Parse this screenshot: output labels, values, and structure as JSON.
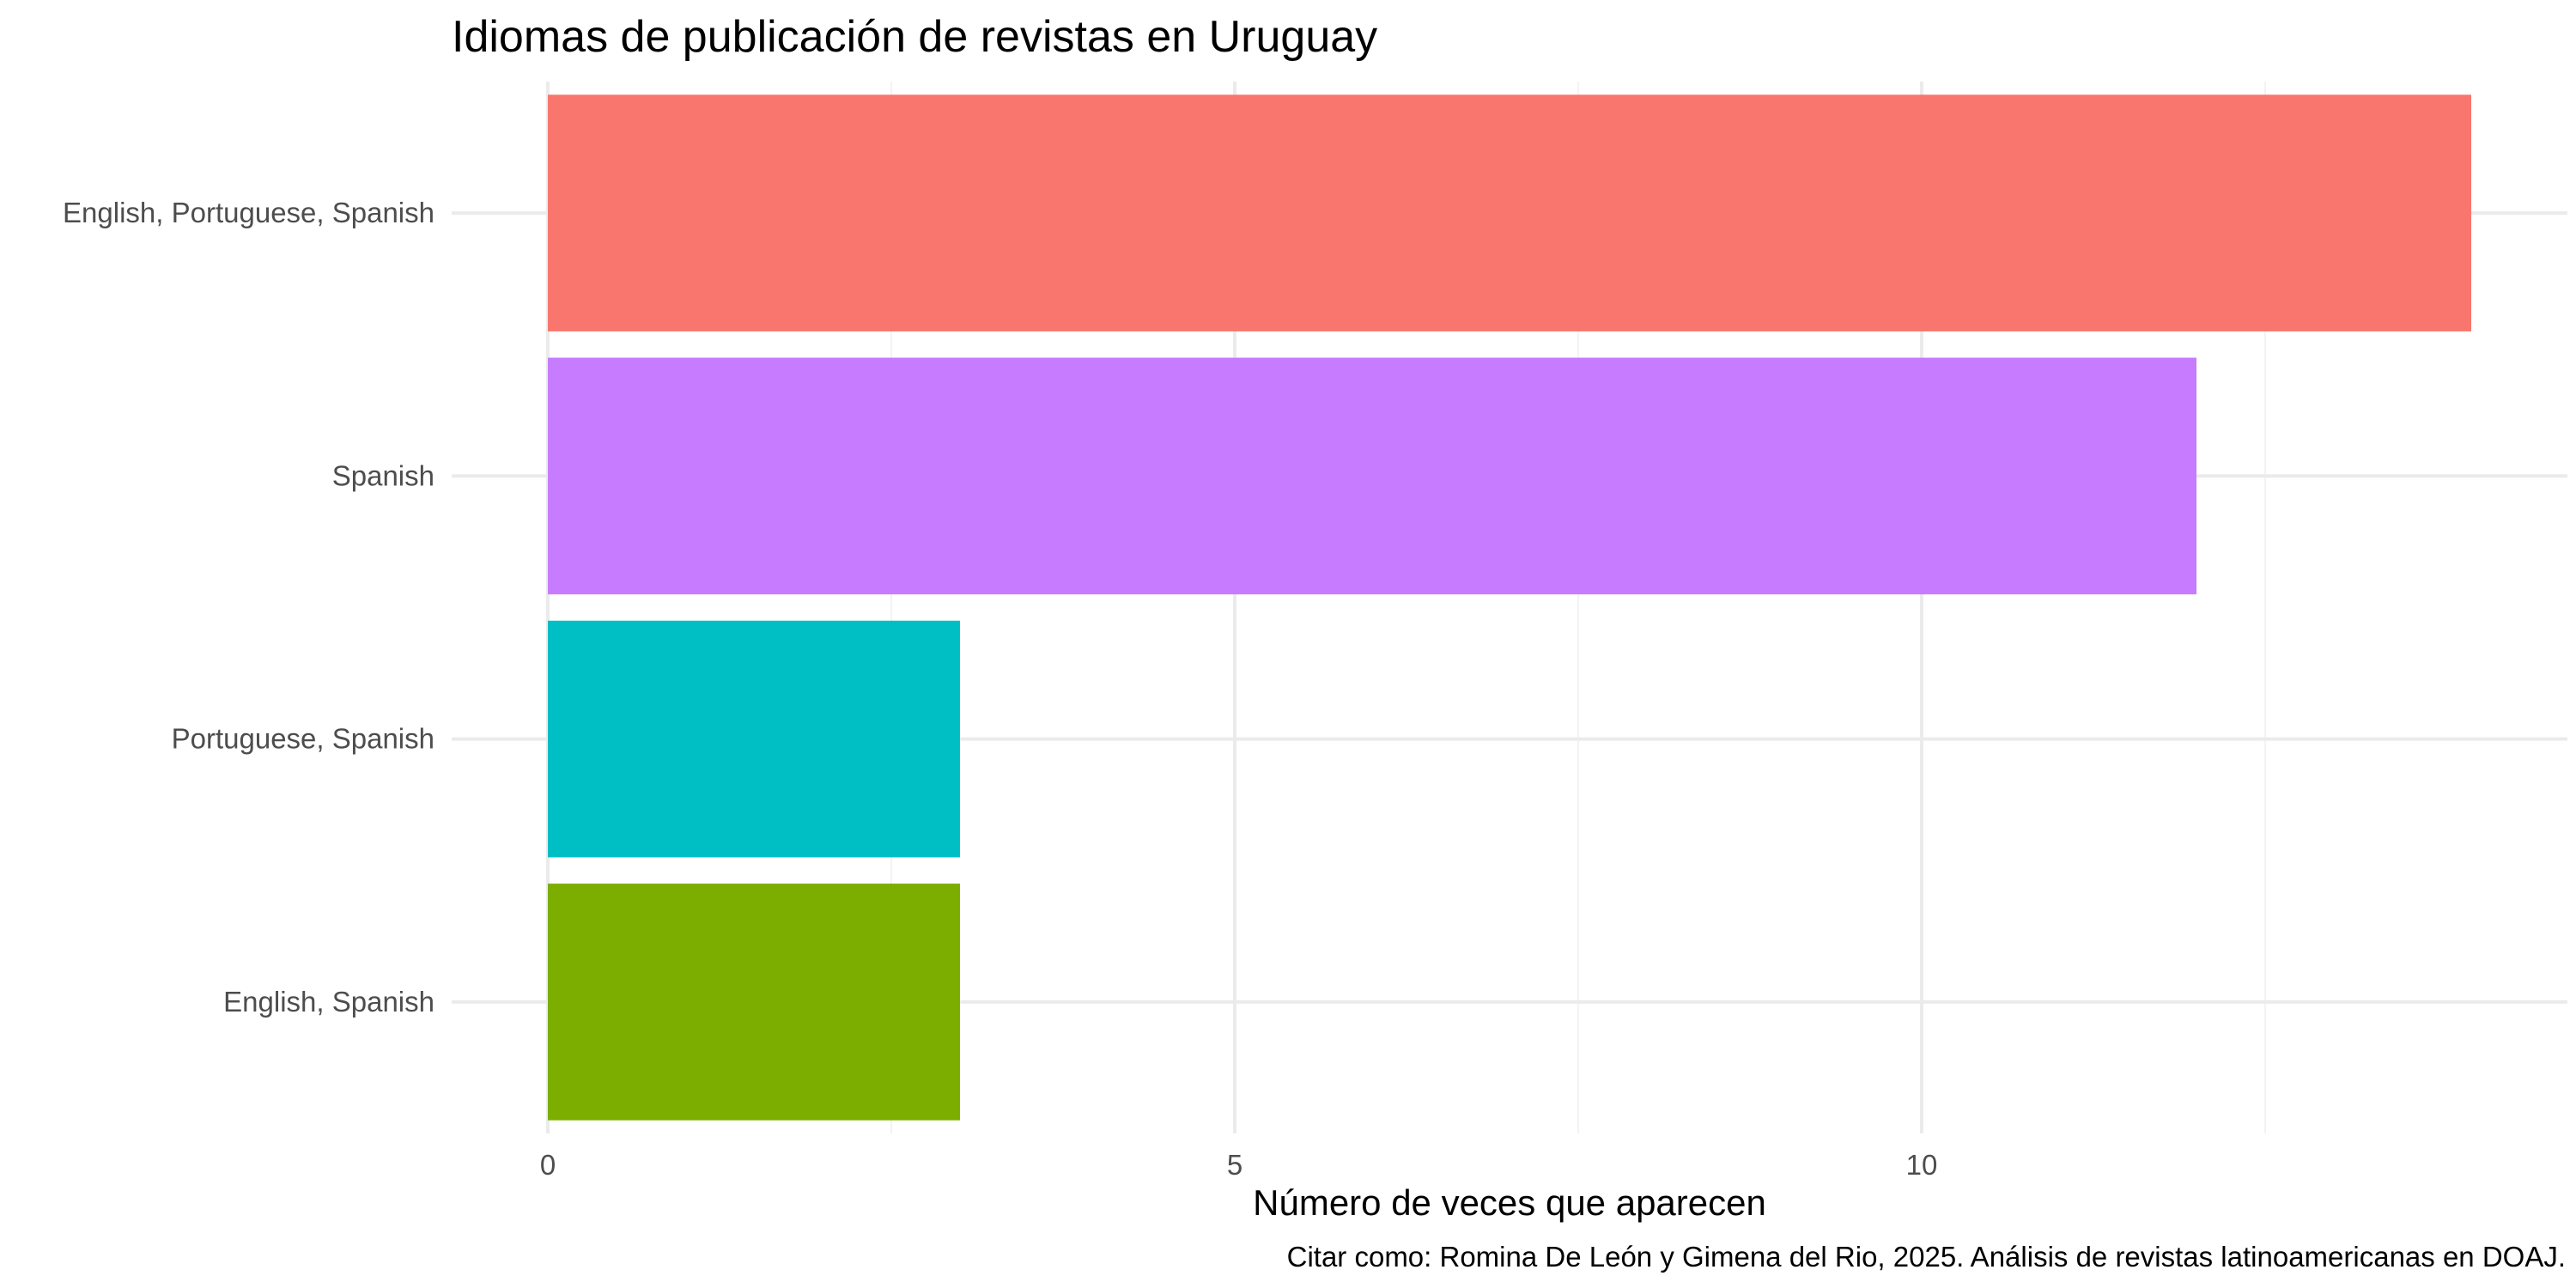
{
  "chart_data": {
    "type": "bar",
    "orientation": "horizontal",
    "title": "Idiomas de publicación de revistas en Uruguay",
    "xlabel": "Número de veces que aparecen",
    "ylabel": "",
    "caption": "Citar como: Romina De León y Gimena del Rio, 2025. Análisis de revistas latinoamericanas en DOAJ.",
    "categories": [
      "English, Portuguese, Spanish",
      "Spanish",
      "Portuguese, Spanish",
      "English, Spanish"
    ],
    "values": [
      14,
      12,
      3,
      3
    ],
    "colors": [
      "#F8766D",
      "#C77CFF",
      "#00BFC4",
      "#7CAE00"
    ],
    "xlim": [
      0,
      14.7
    ],
    "xticks": [
      0,
      5,
      10
    ],
    "xtick_labels": [
      "0",
      "5",
      "10"
    ],
    "grid": true,
    "legend": "none"
  }
}
